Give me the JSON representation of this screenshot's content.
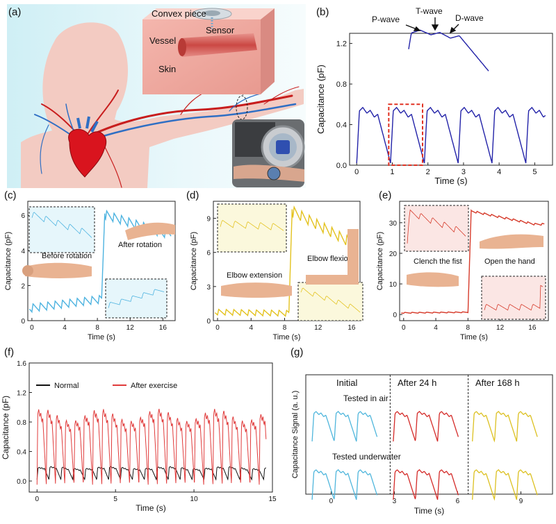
{
  "panels": {
    "a": {
      "label": "(a)",
      "texts": {
        "convex": "Convex piece",
        "sensor": "Sensor",
        "vessel": "Vessel",
        "skin": "Skin"
      },
      "colors": {
        "skin": "#f2c9c0",
        "artery": "#c81e1e",
        "vein": "#2f6fc4",
        "heart": "#d9141e",
        "bg": "#dff5f8"
      }
    },
    "b": {
      "label": "(b)",
      "annotations": [
        "P-wave",
        "T-wave",
        "D-wave"
      ]
    },
    "c": {
      "label": "(c)",
      "annotations": [
        "Before rotation",
        "After rotation"
      ]
    },
    "d": {
      "label": "(d)",
      "annotations": [
        "Elbow extension",
        "Elbow flexion"
      ]
    },
    "e": {
      "label": "(e)",
      "annotations": [
        "Clench the fist",
        "Open the hand"
      ]
    },
    "f": {
      "label": "(f)"
    },
    "g": {
      "label": "(g)",
      "columns": [
        "Initial",
        "After 24 h",
        "After 168 h"
      ],
      "rows": [
        "Tested in air",
        "Tested underwater"
      ]
    }
  },
  "chart_data": [
    {
      "id": "b",
      "type": "line",
      "xlabel": "Time (s)",
      "ylabel": "Capacitance (pF)",
      "xlim": [
        -0.2,
        5.5
      ],
      "ylim": [
        0,
        1.3
      ],
      "xticks": [
        0,
        1,
        2,
        3,
        4,
        5
      ],
      "yticks": [
        0.0,
        0.4,
        0.8,
        1.2
      ],
      "pulse_times": [
        0,
        0.95,
        1.9,
        2.85,
        3.8,
        4.75
      ],
      "peak": 0.58,
      "trough": 0.02,
      "color": "#2222a8",
      "highlight": [
        0.9,
        1.85
      ],
      "highlight_color": "#e03020"
    },
    {
      "id": "c",
      "type": "line",
      "xlabel": "Time (s)",
      "ylabel": "Capacitance (pF)",
      "xlim": [
        -0.5,
        17.5
      ],
      "ylim": [
        0,
        6.8
      ],
      "xticks": [
        0,
        4,
        8,
        12,
        16
      ],
      "yticks": [
        0,
        2,
        4,
        6
      ],
      "before": [
        0.5,
        1.0
      ],
      "after": [
        6.1,
        5.0
      ],
      "switch_time": 8.5,
      "color": "#4db3e0"
    },
    {
      "id": "d",
      "type": "line",
      "xlabel": "Time (s)",
      "ylabel": "Capacitance (pF)",
      "xlim": [
        -0.5,
        17
      ],
      "ylim": [
        0,
        10.5
      ],
      "xticks": [
        0,
        4,
        8,
        12,
        16
      ],
      "yticks": [
        0,
        3,
        6,
        9
      ],
      "before": [
        0.5,
        0.4
      ],
      "after": [
        9.8,
        7.0
      ],
      "switch_time": 8.5,
      "color": "#e3c21e"
    },
    {
      "id": "e",
      "type": "line",
      "xlabel": "Time (s)",
      "ylabel": "Capacitance (pF)",
      "xlim": [
        -0.5,
        18
      ],
      "ylim": [
        -2,
        37
      ],
      "xticks": [
        0,
        4,
        8,
        12,
        16
      ],
      "yticks": [
        0,
        10,
        20,
        30
      ],
      "before": [
        0.4,
        0.6
      ],
      "after": [
        34,
        29.5
      ],
      "switch_time": 8.0,
      "color": "#d63a2a"
    },
    {
      "id": "f",
      "type": "line",
      "xlabel": "Time (s)",
      "ylabel": "Capacitance (pF)",
      "xlim": [
        -0.5,
        15
      ],
      "ylim": [
        -0.15,
        1.6
      ],
      "xticks": [
        0,
        5,
        10,
        15
      ],
      "yticks": [
        0.0,
        0.4,
        0.8,
        1.2,
        1.6
      ],
      "series": [
        {
          "name": "Normal",
          "color": "#111111",
          "peak": 0.2,
          "base": 0.02,
          "period": 0.76
        },
        {
          "name": "After exercise",
          "color": "#e03a3a",
          "peak": 1.05,
          "base": 0.0,
          "period": 0.59
        }
      ]
    },
    {
      "id": "g",
      "type": "line",
      "xlabel": "Time (s)",
      "ylabel": "Capacitance Signal (a. u.)",
      "xlim": [
        -1.2,
        10.5
      ],
      "xticks": [
        0,
        3,
        6,
        9
      ],
      "dividers": [
        2.8,
        6.5
      ],
      "series": [
        {
          "name": "Initial",
          "color": "#4fb6dc"
        },
        {
          "name": "After 24 h",
          "color": "#d42a28"
        },
        {
          "name": "After 168 h",
          "color": "#dcc020"
        }
      ]
    }
  ]
}
